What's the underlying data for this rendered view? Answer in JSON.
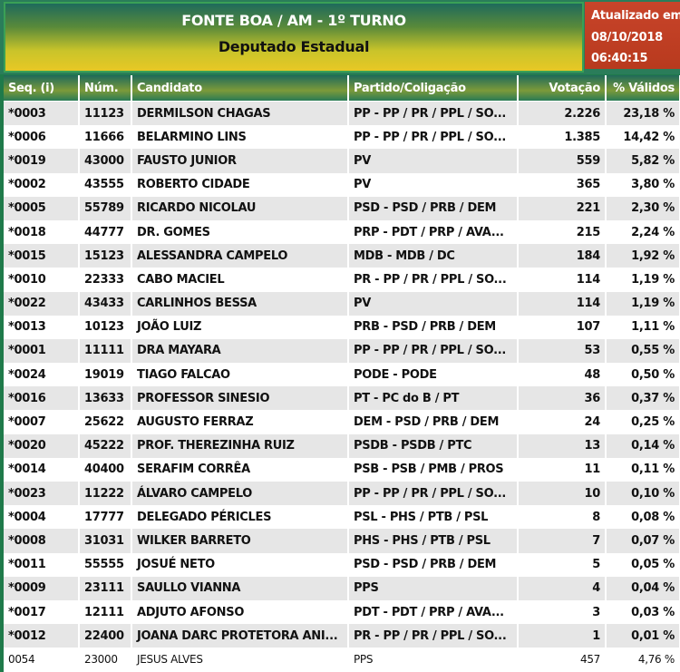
{
  "header": {
    "title": "FONTE BOA / AM - 1º TURNO",
    "subtitle": "Deputado Estadual"
  },
  "updated": {
    "label": "Atualizado em",
    "date": "08/10/2018",
    "time": "06:40:15"
  },
  "columns": [
    "Seq.  (i)",
    "Núm.",
    "Candidato",
    "Partido/Coligação",
    "Votação",
    "% Válidos"
  ],
  "rows": [
    [
      "*0003",
      "11123",
      "DERMILSON CHAGAS",
      "PP - PP / PR / PPL / SO...",
      "2.226",
      "23,18 %"
    ],
    [
      "*0006",
      "11666",
      "BELARMINO LINS",
      "PP - PP / PR / PPL / SO...",
      "1.385",
      "14,42 %"
    ],
    [
      "*0019",
      "43000",
      "FAUSTO JUNIOR",
      "PV",
      "559",
      "5,82 %"
    ],
    [
      "*0002",
      "43555",
      "ROBERTO CIDADE",
      "PV",
      "365",
      "3,80 %"
    ],
    [
      "*0005",
      "55789",
      "RICARDO NICOLAU",
      "PSD - PSD / PRB / DEM",
      "221",
      "2,30 %"
    ],
    [
      "*0018",
      "44777",
      "DR. GOMES",
      "PRP - PDT / PRP / AVA...",
      "215",
      "2,24 %"
    ],
    [
      "*0015",
      "15123",
      "ALESSANDRA CAMPELO",
      "MDB - MDB / DC",
      "184",
      "1,92 %"
    ],
    [
      "*0010",
      "22333",
      "CABO MACIEL",
      "PR - PP / PR / PPL / SO...",
      "114",
      "1,19 %"
    ],
    [
      "*0022",
      "43433",
      "CARLINHOS BESSA",
      "PV",
      "114",
      "1,19 %"
    ],
    [
      "*0013",
      "10123",
      "JOÃO LUIZ",
      "PRB - PSD / PRB / DEM",
      "107",
      "1,11 %"
    ],
    [
      "*0001",
      "11111",
      "DRA MAYARA",
      "PP - PP / PR / PPL / SO...",
      "53",
      "0,55 %"
    ],
    [
      "*0024",
      "19019",
      "TIAGO FALCAO",
      "PODE - PODE",
      "48",
      "0,50 %"
    ],
    [
      "*0016",
      "13633",
      "PROFESSOR SINESIO",
      "PT - PC do B / PT",
      "36",
      "0,37 %"
    ],
    [
      "*0007",
      "25622",
      "AUGUSTO FERRAZ",
      "DEM - PSD / PRB / DEM",
      "24",
      "0,25 %"
    ],
    [
      "*0020",
      "45222",
      "PROF. THEREZINHA RUIZ",
      "PSDB - PSDB / PTC",
      "13",
      "0,14 %"
    ],
    [
      "*0014",
      "40400",
      "SERAFIM CORRÊA",
      "PSB - PSB / PMB / PROS",
      "11",
      "0,11 %"
    ],
    [
      "*0023",
      "11222",
      "ÁLVARO CAMPELO",
      "PP - PP / PR / PPL / SO...",
      "10",
      "0,10 %"
    ],
    [
      "*0004",
      "17777",
      "DELEGADO PÉRICLES",
      "PSL - PHS / PTB / PSL",
      "8",
      "0,08 %"
    ],
    [
      "*0008",
      "31031",
      "WILKER BARRETO",
      "PHS - PHS / PTB / PSL",
      "7",
      "0,07 %"
    ],
    [
      "*0011",
      "55555",
      "JOSUÉ NETO",
      "PSD - PSD / PRB / DEM",
      "5",
      "0,05 %"
    ],
    [
      "*0009",
      "23111",
      "SAULLO VIANNA",
      "PPS",
      "4",
      "0,04 %"
    ],
    [
      "*0017",
      "12111",
      "ADJUTO AFONSO",
      "PDT - PDT / PRP / AVA...",
      "3",
      "0,03 %"
    ],
    [
      "*0012",
      "22400",
      "JOANA DARC PROTETORA ANI...",
      "PR - PP / PR / PPL / SO...",
      "1",
      "0,01 %"
    ],
    [
      "0054",
      "23000",
      "JESUS ALVES",
      "PPS",
      "457",
      "4,76 %"
    ]
  ]
}
